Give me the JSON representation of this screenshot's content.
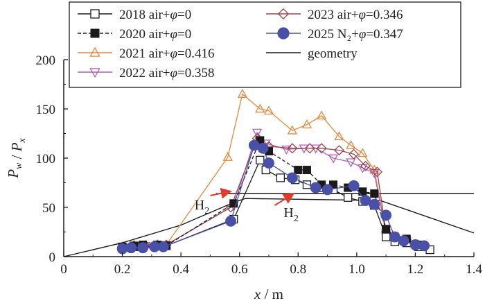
{
  "chart_data": {
    "type": "line",
    "xlabel": "x / m",
    "ylabel": "Pw / Px",
    "xlim": [
      0,
      1.4
    ],
    "ylim": [
      0,
      200
    ],
    "x_ticks": [
      "0",
      "0.2",
      "0.4",
      "0.6",
      "0.8",
      "1.0",
      "1.2",
      "1.4"
    ],
    "y_ticks": [
      "0",
      "50",
      "100",
      "150",
      "200"
    ],
    "grid": false,
    "legend_position": "top",
    "annotations": [
      {
        "text": "H",
        "sub": "2",
        "x": 0.47,
        "y": 48
      },
      {
        "text": "H",
        "sub": "2",
        "x": 0.76,
        "y": 40
      }
    ],
    "series": [
      {
        "name": "2018 air+φ=0",
        "color": "#1a1a1a",
        "marker": "square-open",
        "dash": "solid",
        "x": [
          0.2,
          0.24,
          0.27,
          0.32,
          0.35,
          0.58,
          0.67,
          0.69,
          0.74,
          0.79,
          0.83,
          0.88,
          0.92,
          0.97,
          1.02,
          1.06,
          1.1,
          1.13,
          1.17,
          1.21,
          1.25
        ],
        "y": [
          9,
          10,
          10,
          11,
          11,
          38,
          98,
          88,
          80,
          78,
          73,
          70,
          68,
          60,
          56,
          52,
          20,
          15,
          14,
          10,
          7
        ]
      },
      {
        "name": "2020 air+φ=0",
        "color": "#1a1a1a",
        "marker": "square-filled",
        "dash": "dashed",
        "x": [
          0.2,
          0.24,
          0.27,
          0.32,
          0.35,
          0.58,
          0.67,
          0.7,
          0.8,
          0.83,
          0.88,
          0.92,
          0.97,
          1.02,
          1.06,
          1.1,
          1.13,
          1.17,
          1.21
        ],
        "y": [
          10,
          11,
          12,
          12,
          11,
          54,
          118,
          107,
          88,
          88,
          73,
          73,
          70,
          66,
          64,
          28,
          20,
          18,
          12
        ]
      },
      {
        "name": "2021 air+φ=0.416",
        "color": "#e8873a",
        "marker": "triangle-up-open",
        "dash": "solid",
        "x": [
          0.2,
          0.24,
          0.28,
          0.32,
          0.35,
          0.56,
          0.61,
          0.67,
          0.7,
          0.78,
          0.83,
          0.88,
          0.94,
          0.98,
          1.02,
          1.06,
          1.1,
          1.13,
          1.17,
          1.21
        ],
        "y": [
          10,
          12,
          12,
          12,
          12,
          101,
          165,
          150,
          148,
          128,
          134,
          143,
          122,
          113,
          105,
          88,
          26,
          20,
          16,
          12
        ]
      },
      {
        "name": "2022 air+φ=0.358",
        "color": "#b05fb5",
        "marker": "triangle-down-open",
        "dash": "solid",
        "x": [
          0.2,
          0.24,
          0.28,
          0.32,
          0.35,
          0.58,
          0.66,
          0.69,
          0.76,
          0.82,
          0.86,
          0.92,
          0.98,
          1.02,
          1.06,
          1.1,
          1.13,
          1.17,
          1.21
        ],
        "y": [
          10,
          11,
          11,
          12,
          12,
          52,
          126,
          115,
          109,
          110,
          110,
          100,
          96,
          90,
          85,
          24,
          19,
          16,
          12
        ]
      },
      {
        "name": "2023 air+φ=0.346",
        "color": "#a0424f",
        "marker": "diamond-open",
        "dash": "solid",
        "x": [
          0.2,
          0.24,
          0.28,
          0.32,
          0.35,
          0.57,
          0.66,
          0.7,
          0.78,
          0.84,
          0.88,
          0.94,
          0.99,
          1.03,
          1.07,
          1.1,
          1.13,
          1.17,
          1.21
        ],
        "y": [
          10,
          11,
          11,
          12,
          12,
          50,
          120,
          112,
          110,
          110,
          110,
          108,
          104,
          92,
          86,
          25,
          19,
          17,
          12
        ]
      },
      {
        "name": "2025 N₂+φ=0.347",
        "color": "#4950a8",
        "marker": "circle-filled",
        "dash": "solid",
        "x": [
          0.2,
          0.23,
          0.27,
          0.31,
          0.34,
          0.57,
          0.65,
          0.68,
          0.7,
          0.78,
          0.86,
          0.9,
          0.99,
          1.03,
          1.06,
          1.1,
          1.13,
          1.16,
          1.2,
          1.23
        ],
        "y": [
          8,
          9,
          9,
          10,
          10,
          36,
          113,
          110,
          95,
          80,
          70,
          68,
          72,
          57,
          53,
          42,
          20,
          16,
          12,
          11
        ]
      },
      {
        "name": "geometry",
        "color": "#1a1a1a",
        "marker": "none",
        "dash": "solid",
        "x": [
          0.0,
          0.2,
          0.4,
          0.58,
          0.62,
          1.08,
          1.4
        ],
        "y": [
          0,
          14,
          32,
          55,
          59,
          57,
          24
        ]
      }
    ],
    "horizontal_line": {
      "x": [
        0.52,
        1.4
      ],
      "y": 64
    }
  }
}
